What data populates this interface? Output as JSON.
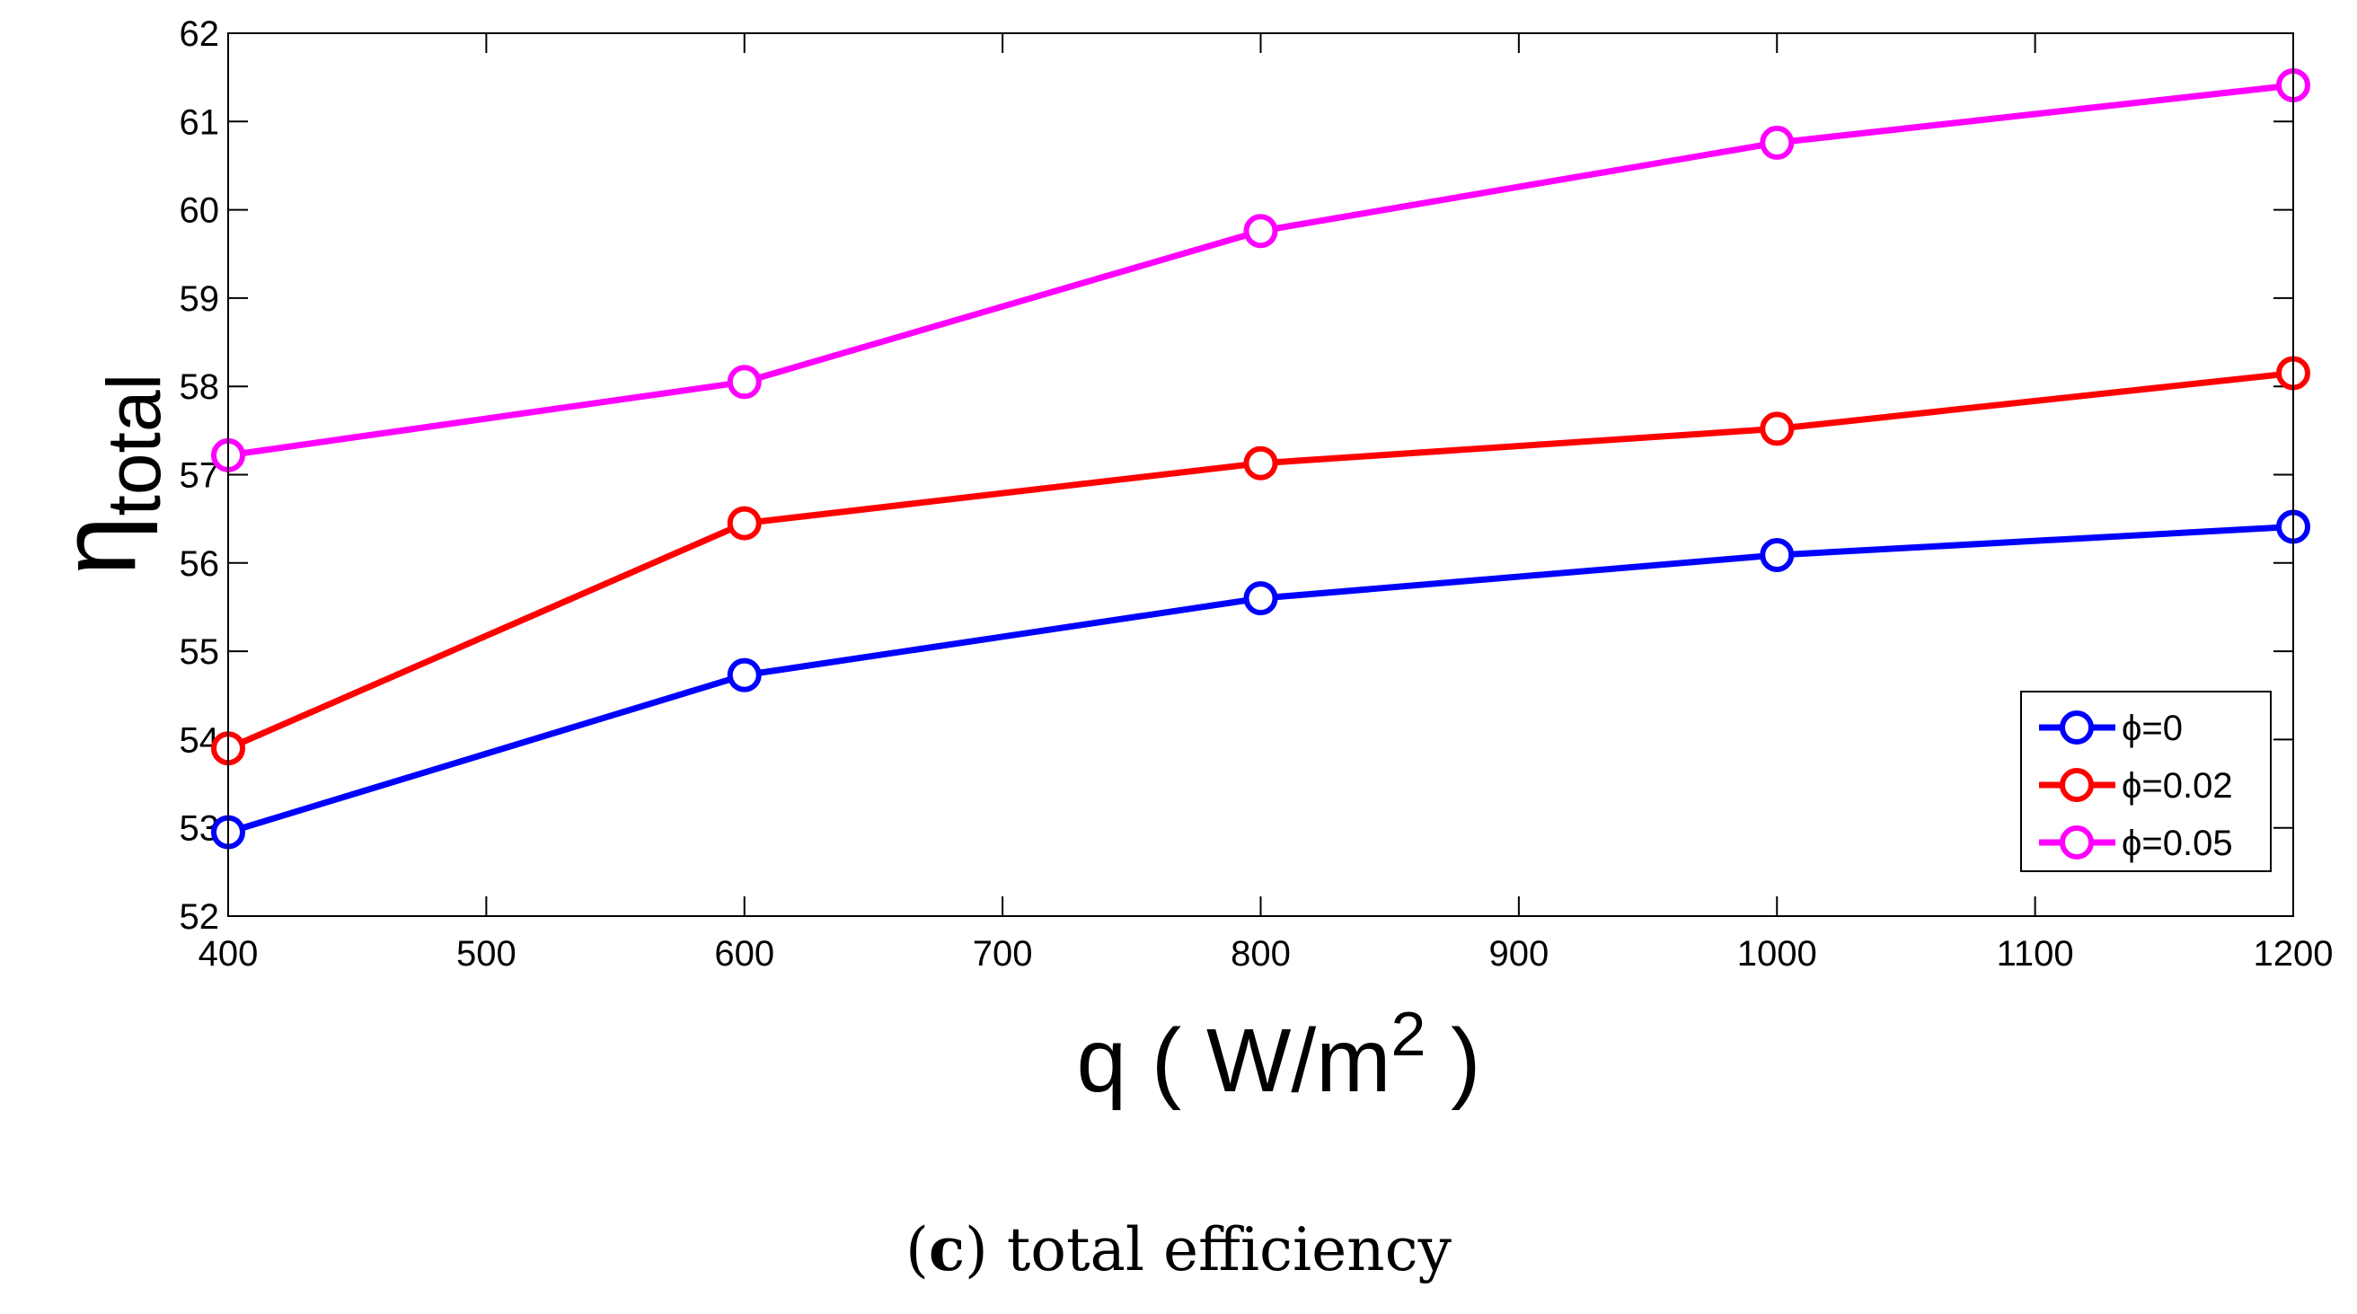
{
  "chart_data": {
    "type": "line",
    "x": [
      400,
      600,
      800,
      1000,
      1200
    ],
    "series": [
      {
        "name": "ϕ=0",
        "color": "#0000ff",
        "values": [
          52.95,
          54.73,
          55.6,
          56.09,
          56.41
        ]
      },
      {
        "name": "ϕ=0.02",
        "color": "#ff0000",
        "values": [
          53.9,
          56.45,
          57.13,
          57.52,
          58.15
        ]
      },
      {
        "name": "ϕ=0.05",
        "color": "#ff00ff",
        "values": [
          57.22,
          58.05,
          59.76,
          60.76,
          61.41
        ]
      }
    ],
    "xlim": [
      400,
      1200
    ],
    "ylim": [
      52,
      62
    ],
    "xticks": [
      400,
      500,
      600,
      700,
      800,
      900,
      1000,
      1100,
      1200
    ],
    "yticks": [
      52,
      53,
      54,
      55,
      56,
      57,
      58,
      59,
      60,
      61,
      62
    ],
    "xlabel": {
      "main": "q ( W/m",
      "sup": "2",
      "close": " )"
    },
    "ylabel": {
      "main": "η",
      "sub": "total"
    },
    "legend_position": "bottom-right",
    "marker": "circle",
    "grid": false
  },
  "caption": {
    "label": "c",
    "text": " total efficiency"
  }
}
